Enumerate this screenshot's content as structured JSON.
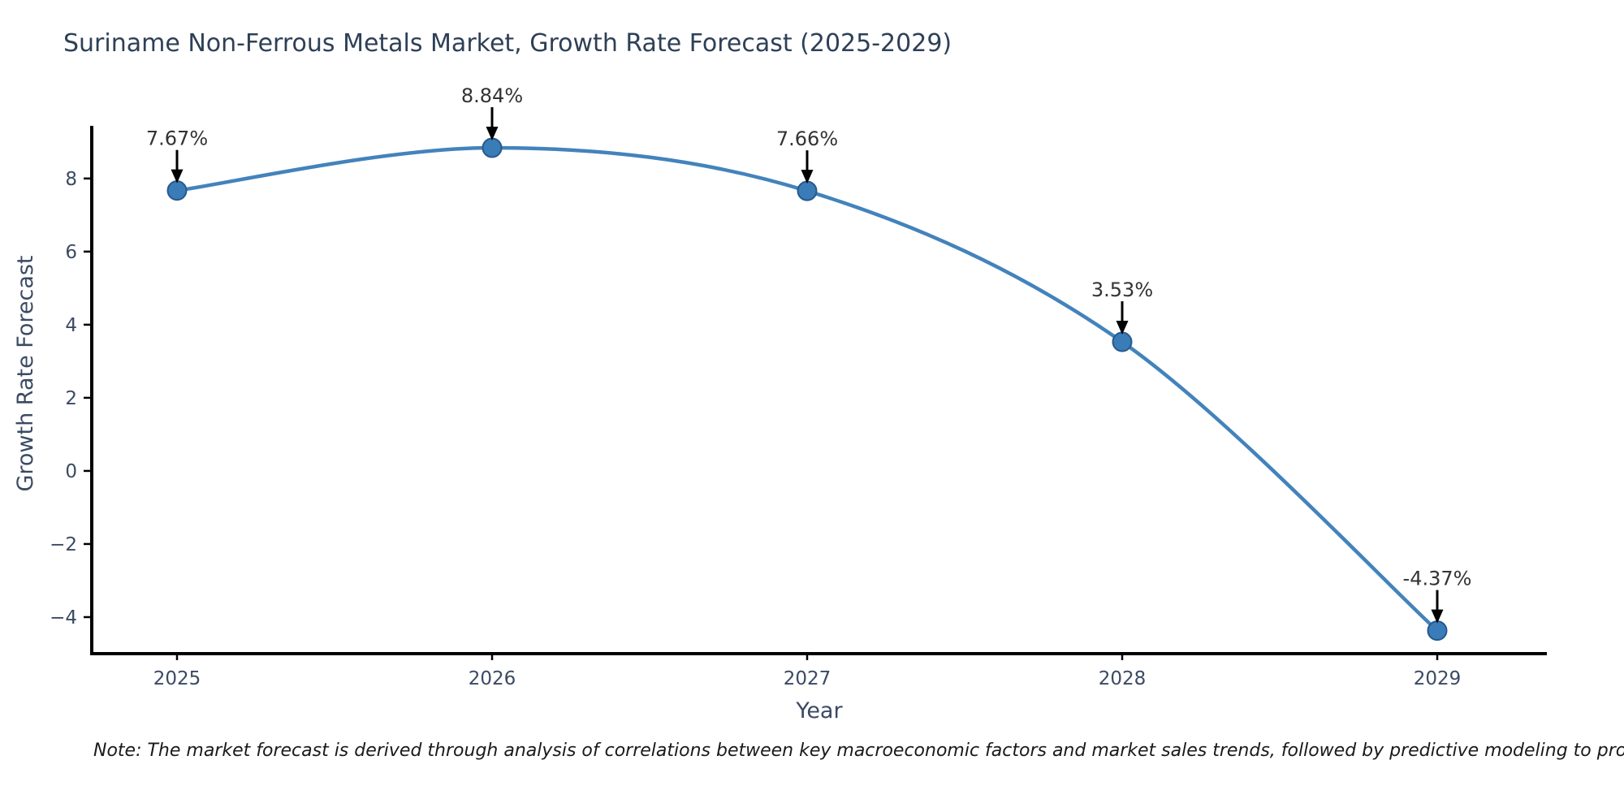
{
  "note": "Note: The market forecast is derived through analysis of correlations between key macroeconomic factors and market sales trends, followed by predictive modeling to project future sales",
  "chart_data": {
    "type": "line",
    "title": "Suriname Non-Ferrous Metals Market, Growth Rate Forecast (2025-2029)",
    "xlabel": "Year",
    "ylabel": "Growth Rate Forecast",
    "x": [
      2025,
      2026,
      2027,
      2028,
      2029
    ],
    "values": [
      7.67,
      8.84,
      7.66,
      3.53,
      -4.37
    ],
    "point_labels": [
      "7.67%",
      "8.84%",
      "7.66%",
      "3.53%",
      "-4.37%"
    ],
    "yticks": [
      8,
      6,
      4,
      2,
      0,
      -2,
      -4
    ],
    "ylim": [
      -5,
      9.44
    ],
    "line_shape": "spline",
    "grid": false,
    "legend_position": "none",
    "colors": {
      "line": "#4383bc",
      "marker_fill": "#3a7cb8",
      "marker_edge": "#27598c",
      "axis": "#000000",
      "tick_label": "#3b4a63",
      "annotation": "#333333",
      "arrow": "#000000",
      "title": "#2e4057"
    }
  }
}
